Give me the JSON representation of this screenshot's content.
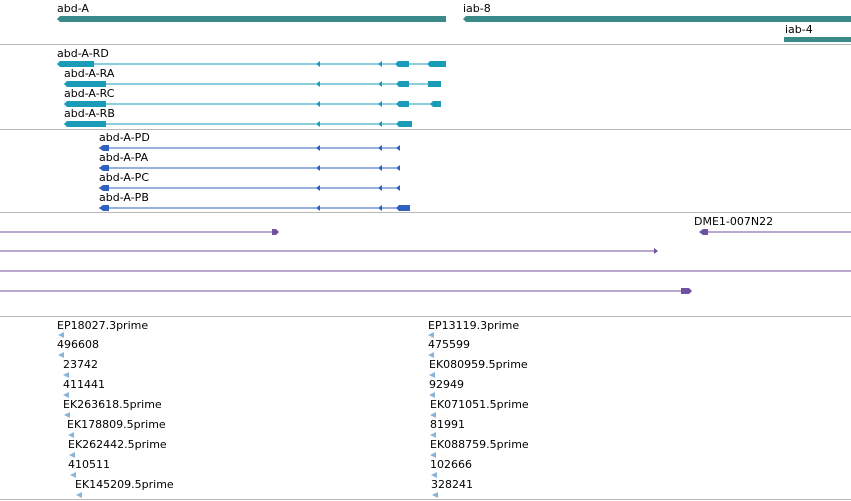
{
  "genes": {
    "abd_a": "abd-A",
    "iab_8": "iab-8",
    "iab_4": "iab-4"
  },
  "transcripts_rna": [
    "abd-A-RD",
    "abd-A-RA",
    "abd-A-RC",
    "abd-A-RB"
  ],
  "transcripts_protein": [
    "abd-A-PD",
    "abd-A-PA",
    "abd-A-PC",
    "abd-A-PB"
  ],
  "clone": {
    "label": "DME1-007N22"
  },
  "ests_left": [
    "EP18027.3prime",
    "496608",
    "23742",
    "411441",
    "EK263618.5prime",
    "EK178809.5prime",
    "EK262442.5prime",
    "410511",
    "EK145209.5prime"
  ],
  "ests_right": [
    "EP13119.3prime",
    "475599",
    "EK080959.5prime",
    "92949",
    "EK071051.5prime",
    "81991",
    "EK088759.5prime",
    "102666",
    "328241"
  ],
  "colors": {
    "gene": "#3b8a8a",
    "rna": "#1a9cb8",
    "protein": "#3060c0",
    "clone": "#7050a0",
    "est": "#8ab4d8",
    "separator": "#b8b8b8"
  }
}
